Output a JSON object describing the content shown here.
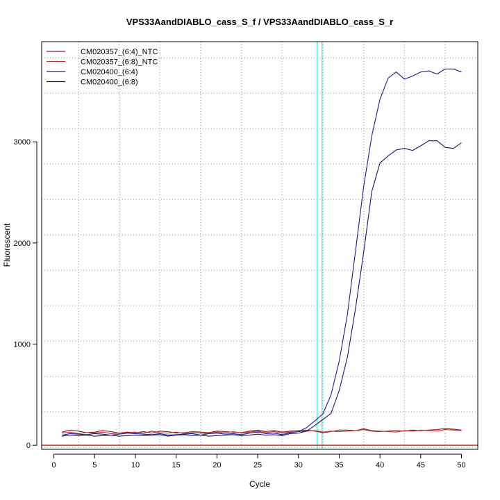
{
  "chart_data": {
    "type": "line",
    "title": "VPS33AandDIABLO_cass_S_f / VPS33AandDIABLO_cass_S_r",
    "xlabel": "Cycle",
    "ylabel": "Fluorescent",
    "xlim": [
      -1.5,
      52
    ],
    "ylim": [
      -40,
      3990
    ],
    "x_ticks": [
      0,
      5,
      10,
      15,
      20,
      25,
      30,
      35,
      40,
      45,
      50
    ],
    "y_ticks": [
      0,
      1000,
      2000,
      3000
    ],
    "grid": true,
    "grid_x": [
      3,
      8,
      13,
      18,
      23,
      28,
      33,
      38,
      43,
      48
    ],
    "grid_y": [
      -20,
      330,
      680,
      1030,
      1380,
      1730,
      2080,
      2430,
      2780,
      3130,
      3480,
      3830
    ],
    "legend_position": "top-left",
    "threshold": 0,
    "threshold_color": "#cc3333",
    "ct_lines": [
      32.3,
      32.9
    ],
    "ct_line_color": "#33dddd",
    "x": [
      1,
      2,
      3,
      4,
      5,
      6,
      7,
      8,
      9,
      10,
      11,
      12,
      13,
      14,
      15,
      16,
      17,
      18,
      19,
      20,
      21,
      22,
      23,
      24,
      25,
      26,
      27,
      28,
      29,
      30,
      31,
      32,
      33,
      34,
      35,
      36,
      37,
      38,
      39,
      40,
      41,
      42,
      43,
      44,
      45,
      46,
      47,
      48,
      49,
      50
    ],
    "series": [
      {
        "name": "CM020357_(6:4)_NTC",
        "color": "#8b1a1a",
        "values": [
          130,
          150,
          140,
          125,
          130,
          145,
          135,
          120,
          130,
          125,
          135,
          120,
          140,
          135,
          120,
          125,
          135,
          130,
          125,
          140,
          135,
          130,
          125,
          140,
          150,
          135,
          145,
          130,
          140,
          145,
          150,
          140,
          125,
          135,
          150,
          150,
          145,
          155,
          140,
          135,
          140,
          145,
          140,
          150,
          145,
          150,
          155,
          165,
          160,
          150
        ]
      },
      {
        "name": "CM020357_(6:8)_NTC",
        "color": "#b03030",
        "values": [
          120,
          130,
          115,
          125,
          120,
          130,
          115,
          120,
          125,
          130,
          120,
          140,
          125,
          120,
          130,
          115,
          125,
          120,
          115,
          130,
          125,
          135,
          120,
          130,
          140,
          125,
          135,
          120,
          130,
          135,
          140,
          145,
          130,
          140,
          135,
          140,
          145,
          165,
          145,
          140,
          135,
          130,
          145,
          140,
          150,
          145,
          140,
          155,
          150,
          145
        ]
      },
      {
        "name": "CM020400_(6:4)",
        "color": "#1c1c8c",
        "values": [
          100,
          115,
          110,
          105,
          115,
          110,
          100,
          110,
          120,
          115,
          110,
          105,
          115,
          100,
          105,
          110,
          115,
          100,
          115,
          120,
          110,
          115,
          105,
          120,
          130,
          115,
          120,
          105,
          125,
          135,
          175,
          240,
          310,
          500,
          830,
          1290,
          1920,
          2560,
          3060,
          3420,
          3630,
          3690,
          3620,
          3650,
          3690,
          3700,
          3670,
          3720,
          3720,
          3690
        ]
      },
      {
        "name": "CM020400_(6:8)",
        "color": "#14146e",
        "values": [
          90,
          100,
          95,
          100,
          90,
          95,
          100,
          90,
          95,
          100,
          95,
          100,
          105,
          90,
          100,
          105,
          95,
          100,
          90,
          95,
          100,
          105,
          95,
          100,
          110,
          100,
          105,
          95,
          115,
          120,
          140,
          195,
          255,
          315,
          540,
          870,
          1350,
          1910,
          2510,
          2790,
          2860,
          2920,
          2935,
          2915,
          2960,
          3010,
          3010,
          2945,
          2935,
          2990
        ]
      }
    ]
  }
}
